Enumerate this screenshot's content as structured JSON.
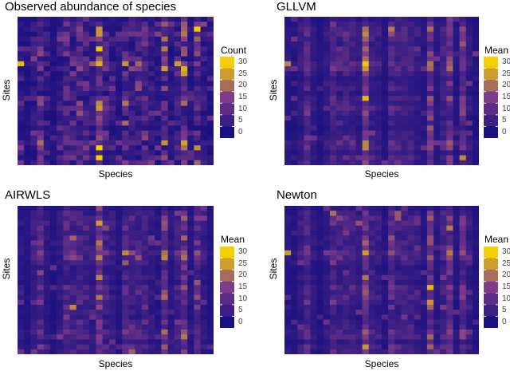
{
  "chart_data": [
    {
      "type": "heatmap",
      "title": "Observed abundance of species",
      "xlabel": "Species",
      "ylabel": "Sites",
      "legend_title": "Count",
      "legend_ticks": [
        "30",
        "25",
        "20",
        "15",
        "10",
        "5",
        "0"
      ],
      "value_range": [
        0,
        32
      ],
      "n_species": 30,
      "n_sites": 30
    },
    {
      "type": "heatmap",
      "title": "GLLVM",
      "xlabel": "Species",
      "ylabel": "Sites",
      "legend_title": "Mean",
      "legend_ticks": [
        "30",
        "25",
        "20",
        "15",
        "10",
        "5",
        "0"
      ],
      "value_range": [
        0,
        32
      ],
      "n_species": 30,
      "n_sites": 30
    },
    {
      "type": "heatmap",
      "title": "AIRWLS",
      "xlabel": "Species",
      "ylabel": "Sites",
      "legend_title": "Mean",
      "legend_ticks": [
        "30",
        "25",
        "20",
        "15",
        "10",
        "5",
        "0"
      ],
      "value_range": [
        0,
        32
      ],
      "n_species": 30,
      "n_sites": 30
    },
    {
      "type": "heatmap",
      "title": "Newton",
      "xlabel": "Species",
      "ylabel": "Sites",
      "legend_title": "Mean",
      "legend_ticks": [
        "30",
        "25",
        "20",
        "15",
        "10",
        "5",
        "0"
      ],
      "value_range": [
        0,
        32
      ],
      "n_species": 30,
      "n_sites": 30
    }
  ],
  "colors": {
    "low": "#1a1180",
    "mid": "#7d3b8a",
    "high": "#f5d000"
  }
}
